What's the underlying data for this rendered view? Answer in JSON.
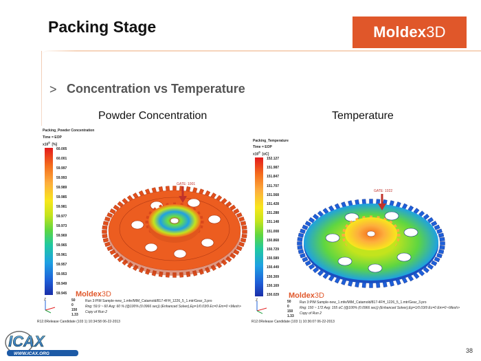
{
  "header": {
    "title": "Packing Stage",
    "brand": {
      "prefix": "Moldex",
      "suffix": "3D"
    }
  },
  "section": {
    "bullet": ">",
    "title": "Concentration vs Temperature"
  },
  "columns": {
    "left_label": "Powder Concentration",
    "right_label": "Temperature"
  },
  "left_panel": {
    "plot_title": "Packing_Powder Concentration",
    "time_label": "Time = EOP",
    "unit_label": "x10",
    "unit_exp": "0",
    "unit": "[%]",
    "ticks": [
      "60.005",
      "60.001",
      "59.997",
      "59.993",
      "59.989",
      "59.985",
      "59.981",
      "59.977",
      "59.973",
      "59.969",
      "59.965",
      "59.961",
      "59.957",
      "59.953",
      "59.949",
      "59.945"
    ],
    "gate_label": "GATE: 1001",
    "brand": {
      "prefix": "Moldex",
      "suffix": "3D"
    },
    "scale_values": [
      "50",
      "0",
      "150",
      "1.33"
    ],
    "run_line": "Run 3:PIM Sample-new_1.mfe/MIM_Catamold/817-4FH_1226_5_1.mtr/Gear_3.pro",
    "range_line": "Rng: 59.9 ~ 60  Avg: 60 %  (@100% (0.0966 sec)) (Enhanced Solver),Ep=1/0.03/9 Ec=0 Em=0 <Mesh>",
    "copy_line": "Copy of Run 2",
    "footer": "R12.0Release Candidate (103 1) 10:34:58 06-22-2013"
  },
  "right_panel": {
    "plot_title": "Packing_Temperature",
    "time_label": "Time = EOP",
    "unit_label": "x10",
    "unit_exp": "0",
    "unit": "[oC]",
    "ticks": [
      "152.127",
      "151.987",
      "151.847",
      "151.707",
      "151.568",
      "151.428",
      "151.288",
      "151.148",
      "151.008",
      "150.868",
      "150.729",
      "150.589",
      "150.449",
      "150.309",
      "150.169",
      "150.029"
    ],
    "gate_label": "GATE: 1022",
    "brand": {
      "prefix": "Moldex",
      "suffix": "3D"
    },
    "scale_values": [
      "50",
      "0",
      "150",
      "1.33"
    ],
    "run_line": "Run 3:PIM Sample-new_1.mfe/MIM_Catamold/817-4FH_1226_5_1.mtr/Gear_3.pro",
    "range_line": "Rng: 150 ~ 172  Avg: 155 oC (@100% (0.0966 sec)) (Enhanced Solver),Ep=1/0.03/9 Ec=0 Em=0 <Mesh>",
    "copy_line": "Copy of Run 2",
    "footer": "R12.0Release Candidate (103 1) 10:36:07 06-22-2013"
  },
  "footer": {
    "logo_text": "ICAX",
    "logo_url_text": "WWW.ICAX.ORG",
    "page_number": "38"
  },
  "colors": {
    "brand_orange": "#e0572a",
    "gate_arrow": "#c0322a"
  }
}
